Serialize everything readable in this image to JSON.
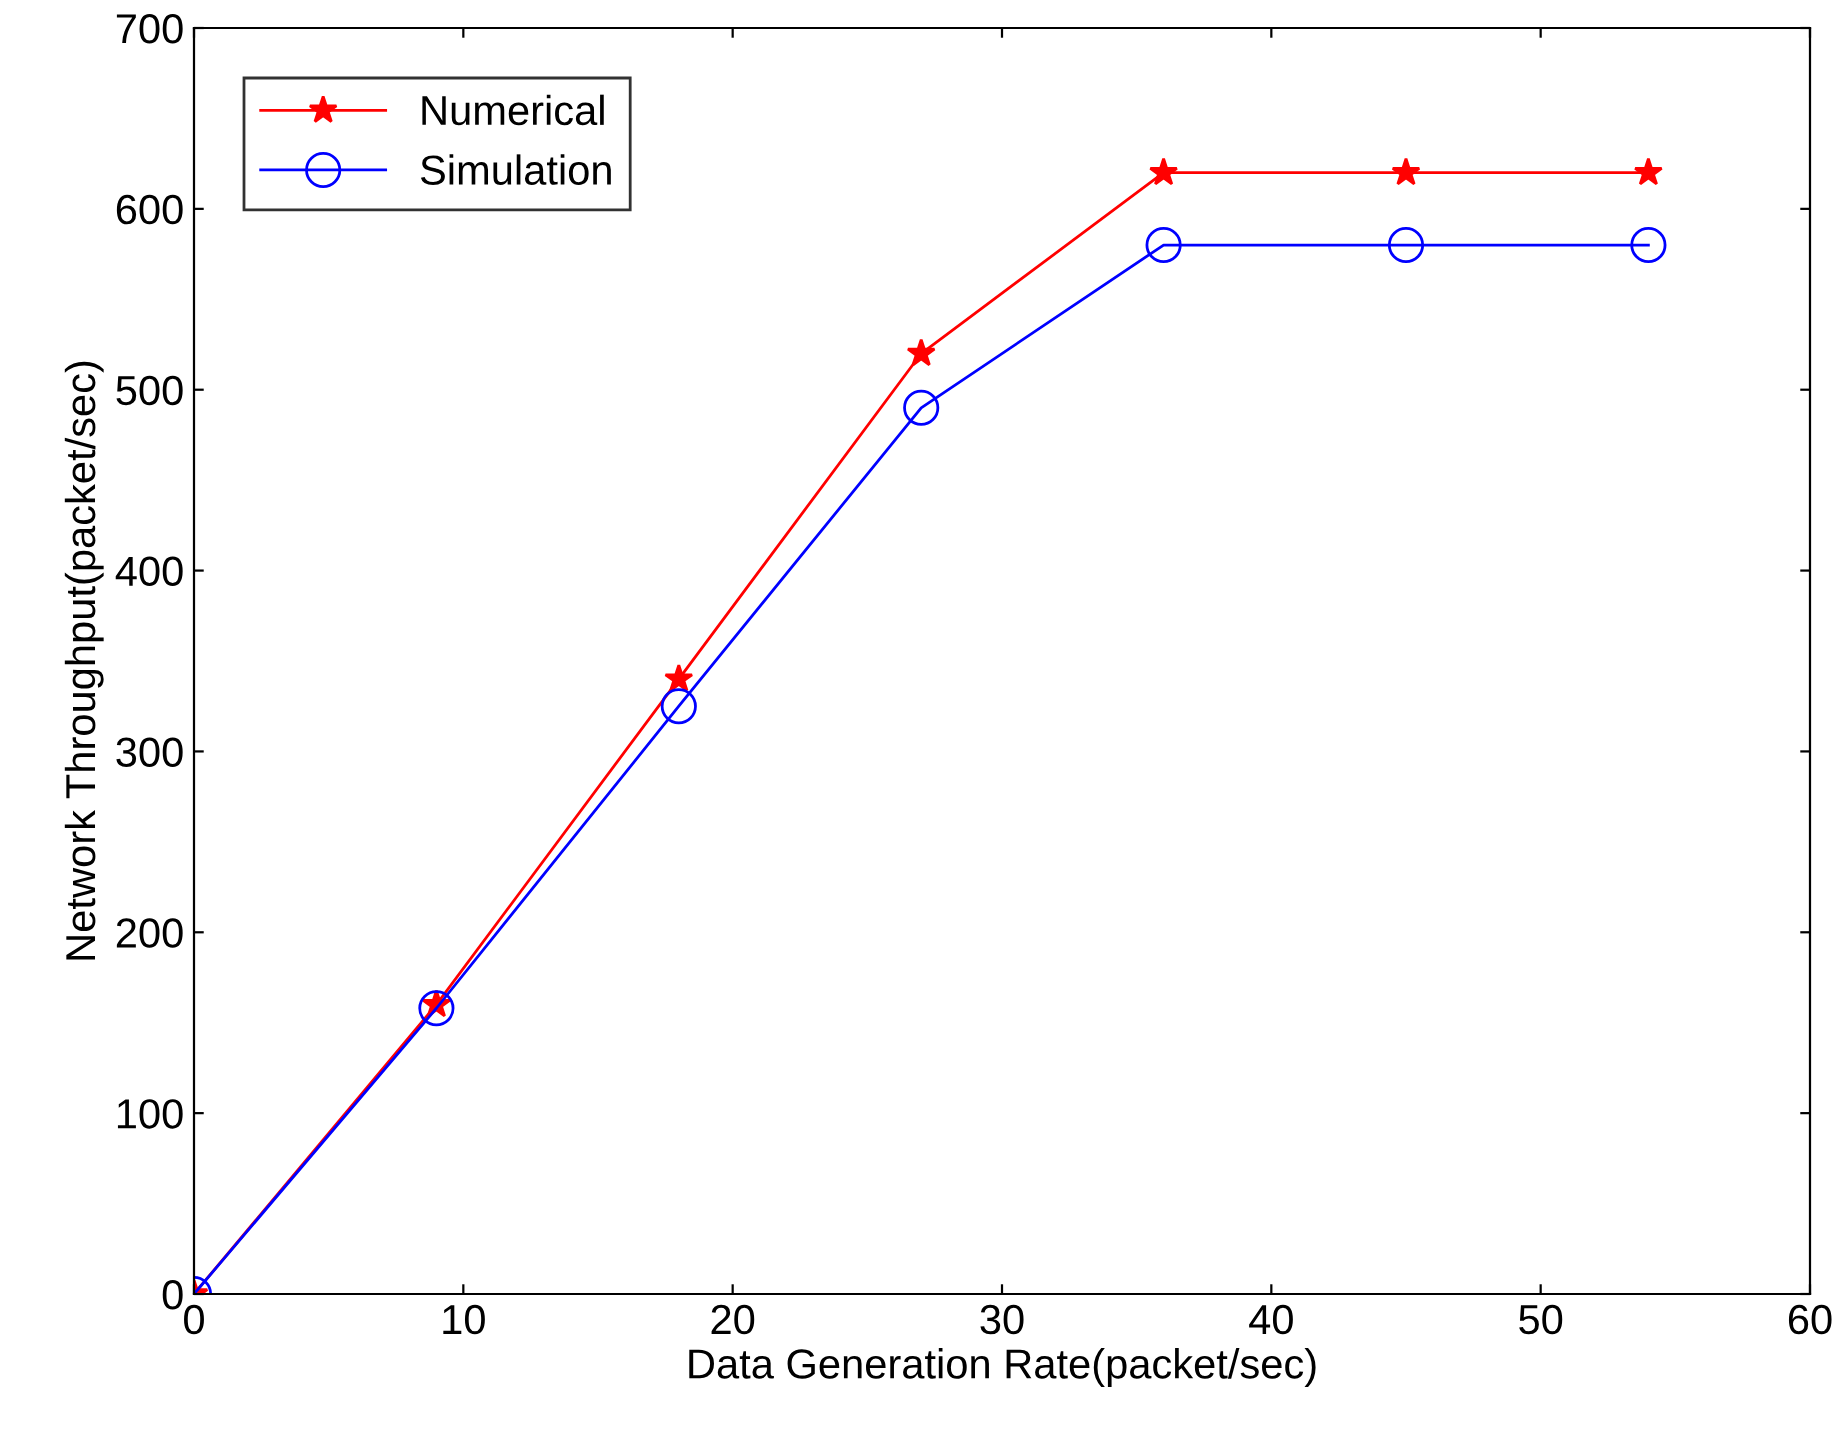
{
  "chart_data": {
    "type": "line",
    "xlabel": "Data Generation Rate(packet/sec)",
    "ylabel": "Network Throughput(packet/sec)",
    "x": [
      0,
      9,
      18,
      27,
      36,
      45,
      54
    ],
    "series": [
      {
        "name": "Numerical",
        "color": "#ff0000",
        "marker": "star",
        "values": [
          0,
          160,
          340,
          520,
          620,
          620,
          620
        ]
      },
      {
        "name": "Simulation",
        "color": "#0000ff",
        "marker": "circle",
        "values": [
          0,
          158,
          325,
          490,
          580,
          580,
          580
        ]
      }
    ],
    "xlim": [
      0,
      60
    ],
    "xticks": [
      0,
      10,
      20,
      30,
      40,
      50,
      60
    ],
    "ylim": [
      0,
      700
    ],
    "yticks": [
      0,
      100,
      200,
      300,
      400,
      500,
      600,
      700
    ],
    "grid": false,
    "legend": "top left",
    "line_style": "solid"
  }
}
